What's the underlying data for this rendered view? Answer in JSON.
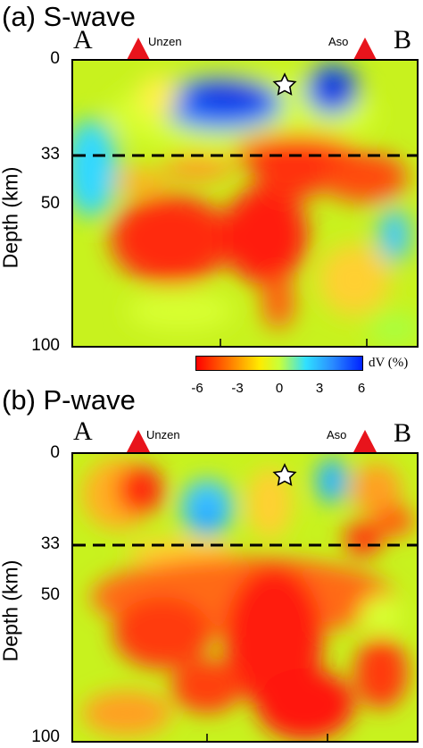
{
  "chart_data": [
    {
      "type": "heatmap",
      "title": "(a) S-wave",
      "ylabel": "Depth (km)",
      "y_ticks": [
        "0",
        "33",
        "50",
        "100"
      ],
      "ylim": [
        0,
        100
      ],
      "profile_ends": [
        "A",
        "B"
      ],
      "volcano_labels": [
        "Unzen",
        "Aso"
      ],
      "moho_depth_km": 33,
      "colorbar": {
        "label": "dV (%)",
        "ticks": [
          "-6",
          "-3",
          "0",
          "3",
          "6"
        ],
        "range": [
          -6,
          6
        ]
      }
    },
    {
      "type": "heatmap",
      "title": "(b) P-wave",
      "ylabel": "Depth (km)",
      "y_ticks": [
        "0",
        "33",
        "50",
        "100"
      ],
      "ylim": [
        0,
        100
      ],
      "profile_ends": [
        "A",
        "B"
      ],
      "volcano_labels": [
        "Unzen",
        "Aso"
      ],
      "moho_depth_km": 33
    }
  ],
  "colors": {
    "slow": "#ff0000",
    "neutral": "#e8ff2a",
    "fast": "#0022ff",
    "volcano": "#e8141c"
  }
}
